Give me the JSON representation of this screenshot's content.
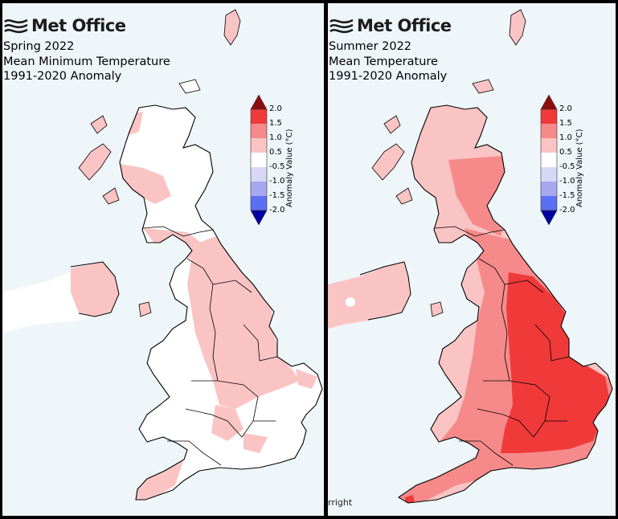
{
  "brand": "Met Office",
  "legend": {
    "title": "Anomaly Value (°C)",
    "ticks": [
      "2.0",
      "1.5",
      "1.0",
      "0.5",
      "-0.5",
      "-1.0",
      "-1.5",
      "-2.0"
    ],
    "colors": {
      "above_2": "#8c0d0d",
      "1.5_2.0": "#f03a3a",
      "1.0_1.5": "#f68a8a",
      "0.5_1.0": "#fbc4c4",
      "-0.5_0.5": "#ffffff",
      "-1.0_-0.5": "#d8d8f6",
      "-1.5_-1.0": "#a8a8ee",
      "-2.0_-1.5": "#5a6ff2",
      "below_-2": "#0000a0"
    }
  },
  "maps": [
    {
      "title_lines": [
        "Spring 2022",
        "Mean Minimum Temperature",
        "1991-2020 Anomaly"
      ],
      "copyright": ""
    },
    {
      "title_lines": [
        "Summer 2022",
        "Mean Temperature",
        "1991-2020 Anomaly"
      ],
      "copyright": "rright"
    }
  ]
}
